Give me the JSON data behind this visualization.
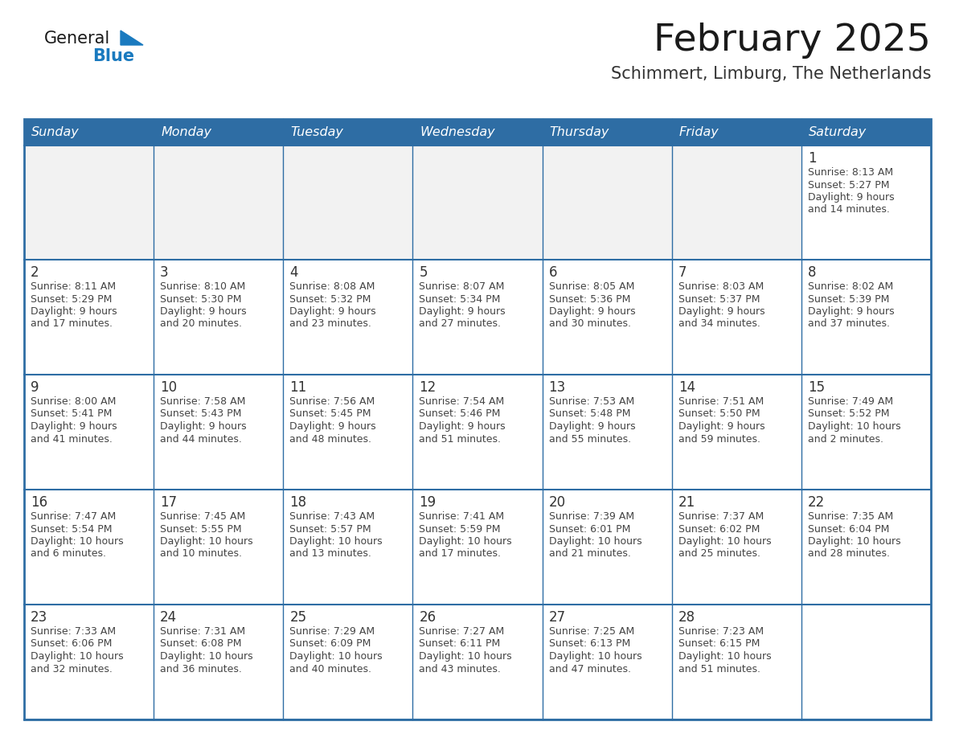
{
  "title": "February 2025",
  "subtitle": "Schimmert, Limburg, The Netherlands",
  "days_of_week": [
    "Sunday",
    "Monday",
    "Tuesday",
    "Wednesday",
    "Thursday",
    "Friday",
    "Saturday"
  ],
  "header_bg": "#2E6DA4",
  "header_text": "#FFFFFF",
  "cell_bg": "#FFFFFF",
  "cell_bg_alt": "#F2F2F2",
  "border_color": "#2E6DA4",
  "text_color": "#444444",
  "day_num_color": "#333333",
  "title_color": "#1a1a1a",
  "subtitle_color": "#333333",
  "logo_general_color": "#1a1a1a",
  "logo_blue_color": "#1a7abf",
  "calendar_data": [
    [
      null,
      null,
      null,
      null,
      null,
      null,
      {
        "day": 1,
        "sunrise": "8:13 AM",
        "sunset": "5:27 PM",
        "daylight_h": "9 hours",
        "daylight_m": "and 14 minutes."
      }
    ],
    [
      {
        "day": 2,
        "sunrise": "8:11 AM",
        "sunset": "5:29 PM",
        "daylight_h": "9 hours",
        "daylight_m": "and 17 minutes."
      },
      {
        "day": 3,
        "sunrise": "8:10 AM",
        "sunset": "5:30 PM",
        "daylight_h": "9 hours",
        "daylight_m": "and 20 minutes."
      },
      {
        "day": 4,
        "sunrise": "8:08 AM",
        "sunset": "5:32 PM",
        "daylight_h": "9 hours",
        "daylight_m": "and 23 minutes."
      },
      {
        "day": 5,
        "sunrise": "8:07 AM",
        "sunset": "5:34 PM",
        "daylight_h": "9 hours",
        "daylight_m": "and 27 minutes."
      },
      {
        "day": 6,
        "sunrise": "8:05 AM",
        "sunset": "5:36 PM",
        "daylight_h": "9 hours",
        "daylight_m": "and 30 minutes."
      },
      {
        "day": 7,
        "sunrise": "8:03 AM",
        "sunset": "5:37 PM",
        "daylight_h": "9 hours",
        "daylight_m": "and 34 minutes."
      },
      {
        "day": 8,
        "sunrise": "8:02 AM",
        "sunset": "5:39 PM",
        "daylight_h": "9 hours",
        "daylight_m": "and 37 minutes."
      }
    ],
    [
      {
        "day": 9,
        "sunrise": "8:00 AM",
        "sunset": "5:41 PM",
        "daylight_h": "9 hours",
        "daylight_m": "and 41 minutes."
      },
      {
        "day": 10,
        "sunrise": "7:58 AM",
        "sunset": "5:43 PM",
        "daylight_h": "9 hours",
        "daylight_m": "and 44 minutes."
      },
      {
        "day": 11,
        "sunrise": "7:56 AM",
        "sunset": "5:45 PM",
        "daylight_h": "9 hours",
        "daylight_m": "and 48 minutes."
      },
      {
        "day": 12,
        "sunrise": "7:54 AM",
        "sunset": "5:46 PM",
        "daylight_h": "9 hours",
        "daylight_m": "and 51 minutes."
      },
      {
        "day": 13,
        "sunrise": "7:53 AM",
        "sunset": "5:48 PM",
        "daylight_h": "9 hours",
        "daylight_m": "and 55 minutes."
      },
      {
        "day": 14,
        "sunrise": "7:51 AM",
        "sunset": "5:50 PM",
        "daylight_h": "9 hours",
        "daylight_m": "and 59 minutes."
      },
      {
        "day": 15,
        "sunrise": "7:49 AM",
        "sunset": "5:52 PM",
        "daylight_h": "10 hours",
        "daylight_m": "and 2 minutes."
      }
    ],
    [
      {
        "day": 16,
        "sunrise": "7:47 AM",
        "sunset": "5:54 PM",
        "daylight_h": "10 hours",
        "daylight_m": "and 6 minutes."
      },
      {
        "day": 17,
        "sunrise": "7:45 AM",
        "sunset": "5:55 PM",
        "daylight_h": "10 hours",
        "daylight_m": "and 10 minutes."
      },
      {
        "day": 18,
        "sunrise": "7:43 AM",
        "sunset": "5:57 PM",
        "daylight_h": "10 hours",
        "daylight_m": "and 13 minutes."
      },
      {
        "day": 19,
        "sunrise": "7:41 AM",
        "sunset": "5:59 PM",
        "daylight_h": "10 hours",
        "daylight_m": "and 17 minutes."
      },
      {
        "day": 20,
        "sunrise": "7:39 AM",
        "sunset": "6:01 PM",
        "daylight_h": "10 hours",
        "daylight_m": "and 21 minutes."
      },
      {
        "day": 21,
        "sunrise": "7:37 AM",
        "sunset": "6:02 PM",
        "daylight_h": "10 hours",
        "daylight_m": "and 25 minutes."
      },
      {
        "day": 22,
        "sunrise": "7:35 AM",
        "sunset": "6:04 PM",
        "daylight_h": "10 hours",
        "daylight_m": "and 28 minutes."
      }
    ],
    [
      {
        "day": 23,
        "sunrise": "7:33 AM",
        "sunset": "6:06 PM",
        "daylight_h": "10 hours",
        "daylight_m": "and 32 minutes."
      },
      {
        "day": 24,
        "sunrise": "7:31 AM",
        "sunset": "6:08 PM",
        "daylight_h": "10 hours",
        "daylight_m": "and 36 minutes."
      },
      {
        "day": 25,
        "sunrise": "7:29 AM",
        "sunset": "6:09 PM",
        "daylight_h": "10 hours",
        "daylight_m": "and 40 minutes."
      },
      {
        "day": 26,
        "sunrise": "7:27 AM",
        "sunset": "6:11 PM",
        "daylight_h": "10 hours",
        "daylight_m": "and 43 minutes."
      },
      {
        "day": 27,
        "sunrise": "7:25 AM",
        "sunset": "6:13 PM",
        "daylight_h": "10 hours",
        "daylight_m": "and 47 minutes."
      },
      {
        "day": 28,
        "sunrise": "7:23 AM",
        "sunset": "6:15 PM",
        "daylight_h": "10 hours",
        "daylight_m": "and 51 minutes."
      },
      null
    ]
  ]
}
